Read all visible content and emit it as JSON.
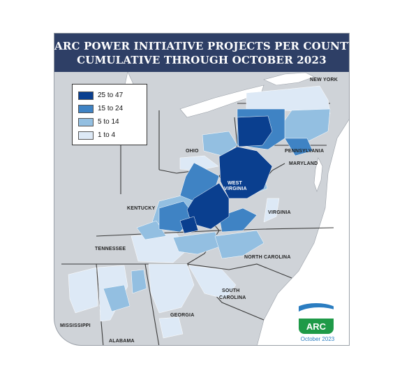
{
  "title": {
    "line1": "ARC POWER INITIATIVE PROJECTS PER COUNTY",
    "line2": "CUMULATIVE THROUGH OCTOBER 2023"
  },
  "legend": [
    {
      "label": "25 to 47",
      "color": "#0a3f8f"
    },
    {
      "label": "15 to 24",
      "color": "#3f83c4"
    },
    {
      "label": "5 to 14",
      "color": "#93bfe1"
    },
    {
      "label": "1 to 4",
      "color": "#dde9f6"
    }
  ],
  "states": {
    "new_york": "NEW YORK",
    "pennsylvania": "PENNSYLVANIA",
    "ohio": "OHIO",
    "maryland": "MARYLAND",
    "west_virginia_1": "WEST",
    "west_virginia_2": "VIRGINIA",
    "kentucky": "KENTUCKY",
    "virginia": "VIRGINIA",
    "tennessee": "TENNESSEE",
    "north_carolina": "NORTH CAROLINA",
    "south_carolina_1": "SOUTH",
    "south_carolina_2": "CAROLINA",
    "georgia": "GEORGIA",
    "mississippi": "MISSISSIPPI",
    "alabama": "ALABAMA"
  },
  "logo": {
    "text": "ARC",
    "date": "October 2023"
  },
  "colors": {
    "banner": "#2e3f66",
    "land": "#cfd3d8",
    "lake": "#ffffff",
    "ocean": "#ffffff"
  }
}
